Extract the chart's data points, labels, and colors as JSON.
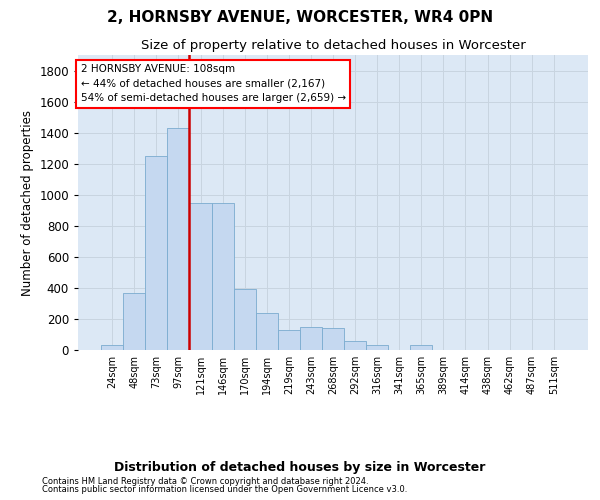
{
  "title": "2, HORNSBY AVENUE, WORCESTER, WR4 0PN",
  "subtitle": "Size of property relative to detached houses in Worcester",
  "xlabel": "Distribution of detached houses by size in Worcester",
  "ylabel": "Number of detached properties",
  "footer_line1": "Contains HM Land Registry data © Crown copyright and database right 2024.",
  "footer_line2": "Contains public sector information licensed under the Open Government Licence v3.0.",
  "categories": [
    "24sqm",
    "48sqm",
    "73sqm",
    "97sqm",
    "121sqm",
    "146sqm",
    "170sqm",
    "194sqm",
    "219sqm",
    "243sqm",
    "268sqm",
    "292sqm",
    "316sqm",
    "341sqm",
    "365sqm",
    "389sqm",
    "414sqm",
    "438sqm",
    "462sqm",
    "487sqm",
    "511sqm"
  ],
  "values": [
    35,
    370,
    1250,
    1430,
    950,
    950,
    390,
    240,
    130,
    150,
    140,
    55,
    30,
    0,
    30,
    0,
    0,
    0,
    0,
    0,
    0
  ],
  "bar_color": "#c5d8f0",
  "bar_edge_color": "#7aabcf",
  "property_label": "2 HORNSBY AVENUE: 108sqm",
  "annotation_line1": "← 44% of detached houses are smaller (2,167)",
  "annotation_line2": "54% of semi-detached houses are larger (2,659) →",
  "vline_color": "#cc0000",
  "vline_x": 3.5,
  "ylim": [
    0,
    1900
  ],
  "yticks": [
    0,
    200,
    400,
    600,
    800,
    1000,
    1200,
    1400,
    1600,
    1800
  ],
  "grid_color": "#c8d4e0",
  "bg_color": "#dce8f5",
  "title_fontsize": 11,
  "subtitle_fontsize": 9.5
}
